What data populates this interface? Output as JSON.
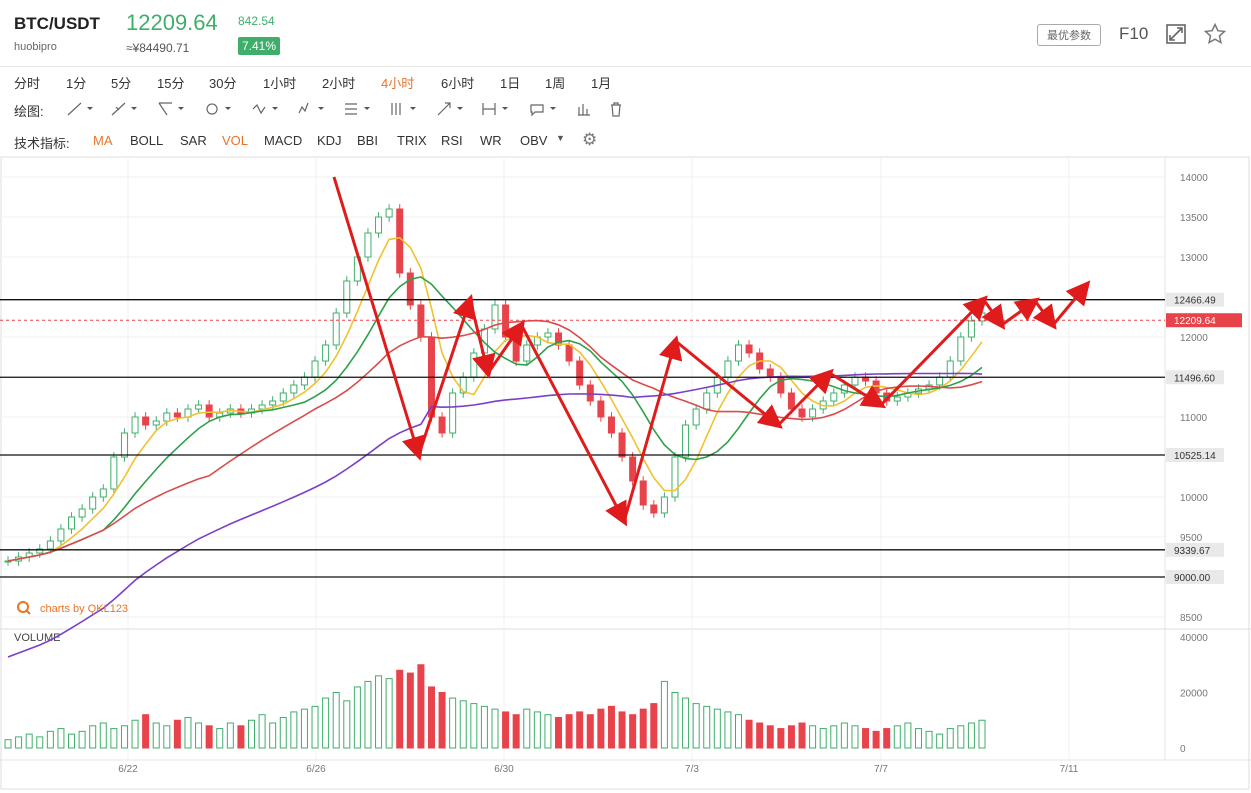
{
  "header": {
    "pair": "BTC/USDT",
    "exchange": "huobipro",
    "price": "12209.64",
    "cny_price": "≈¥84490.71",
    "change": "842.54",
    "change_pct": "7.41%",
    "best_params": "最优参数",
    "f10": "F10",
    "colors": {
      "up": "#3fae6a",
      "down": "#e8424a",
      "accent": "#e8742a"
    }
  },
  "timeframes": [
    "分时",
    "1分",
    "5分",
    "15分",
    "30分",
    "1小时",
    "2小时",
    "4小时",
    "6小时",
    "1日",
    "1周",
    "1月"
  ],
  "active_timeframe": "4小时",
  "drawing_label": "绘图:",
  "drawing_tools": [
    "line-tool-icon",
    "ray-tool-icon",
    "channel-tool-icon",
    "circle-tool-icon",
    "wave-tool-icon",
    "pattern-tool-icon",
    "fib-tool-icon",
    "grid-tool-icon",
    "arrow-tool-icon",
    "range-tool-icon",
    "text-tool-icon",
    "chart-tool-icon",
    "trash-icon"
  ],
  "indicator_label": "技术指标:",
  "indicators": [
    "MA",
    "BOLL",
    "SAR",
    "VOL",
    "MACD",
    "KDJ",
    "BBI",
    "TRIX",
    "RSI",
    "WR",
    "OBV"
  ],
  "active_indicators": [
    "MA",
    "VOL"
  ],
  "watermark": "charts by QKL123",
  "chart_data": {
    "type": "candlestick",
    "price_ticks": [
      14000,
      13500,
      13000,
      12000,
      11000,
      10000,
      9500,
      8500
    ],
    "ylim": [
      8500,
      14000
    ],
    "horizontal_levels": [
      {
        "value": 12466.49,
        "label": "12466.49"
      },
      {
        "value": 11496.6,
        "label": "11496.60"
      },
      {
        "value": 10525.14,
        "label": "10525.14"
      },
      {
        "value": 9339.67,
        "label": "9339.67"
      },
      {
        "value": 9000.0,
        "label": "9000.00"
      }
    ],
    "current_price": {
      "value": 12209.64,
      "label": "12209.64"
    },
    "x_labels": [
      "6/22",
      "6/26",
      "6/30",
      "7/3",
      "7/7",
      "7/11"
    ],
    "volume_label": "VOLUME",
    "volume_ticks": [
      40000,
      20000,
      0
    ],
    "volume_ylim": [
      0,
      40000
    ],
    "volume_total_profile": [
      3,
      4,
      5,
      4,
      6,
      7,
      5,
      6,
      8,
      9,
      7,
      8,
      10,
      12,
      9,
      8,
      10,
      11,
      9,
      8,
      7,
      9,
      8,
      10,
      12,
      9,
      11,
      13,
      14,
      15,
      18,
      20,
      17,
      22,
      24,
      26,
      25,
      28,
      27,
      30,
      22,
      20,
      18,
      17,
      16,
      15,
      14,
      13,
      12,
      14,
      13,
      12,
      11,
      12,
      13,
      12,
      14,
      15,
      13,
      12,
      14,
      16,
      24,
      20,
      18,
      16,
      15,
      14,
      13,
      12,
      10,
      9,
      8,
      7,
      8,
      9,
      8,
      7,
      8,
      9,
      8,
      7,
      6,
      7,
      8,
      9,
      7,
      6,
      5,
      7,
      8,
      9,
      10,
      9,
      8
    ],
    "wave_path_points": [
      [
        "6/26+",
        14000
      ],
      [
        "6/28",
        10525
      ],
      [
        "6/29",
        12466
      ],
      [
        "6/29+",
        11550
      ],
      [
        "6/30",
        12150
      ],
      [
        "7/2",
        9700
      ],
      [
        "7/3",
        11950
      ],
      [
        "7/5",
        10900
      ],
      [
        "7/6",
        11550
      ],
      [
        "7/7",
        11150
      ],
      [
        "7/9",
        12466
      ],
      [
        "7/9+",
        12150
      ],
      [
        "7/10",
        12450
      ],
      [
        "7/10+",
        12150
      ],
      [
        "7/11",
        12650
      ]
    ],
    "series": [
      {
        "name": "MA",
        "color": "#f2c12e"
      },
      {
        "name": "MA",
        "color": "#2ea14a"
      },
      {
        "name": "MA",
        "color": "#d94c4c"
      },
      {
        "name": "MA",
        "color": "#7a3fc7"
      }
    ]
  }
}
